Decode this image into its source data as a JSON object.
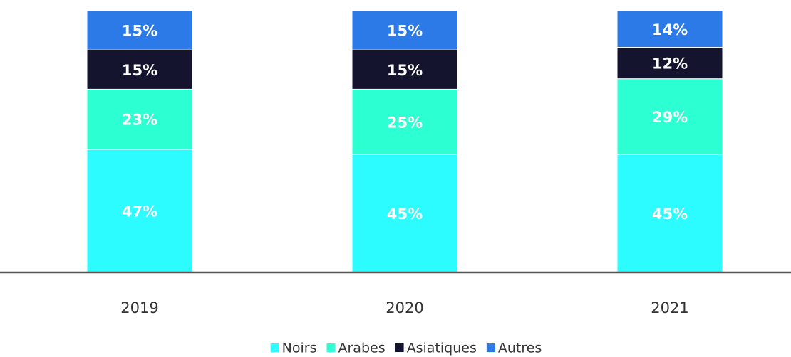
{
  "chart_data": {
    "type": "stacked_bar",
    "categories": [
      "2019",
      "2020",
      "2021"
    ],
    "series": [
      {
        "name": "Noirs",
        "color": "#2cfbff",
        "values": [
          47,
          45,
          45
        ],
        "value_labels": [
          "47%",
          "45%",
          "45%"
        ]
      },
      {
        "name": "Arabes",
        "color": "#2cffd2",
        "values": [
          23,
          25,
          29
        ],
        "value_labels": [
          "23%",
          "25%",
          "29%"
        ]
      },
      {
        "name": "Asiatiques",
        "color": "#15142f",
        "values": [
          15,
          15,
          12
        ],
        "value_labels": [
          "15%",
          "15%",
          "12%"
        ]
      },
      {
        "name": "Autres",
        "color": "#2b7ae8",
        "values": [
          15,
          15,
          14
        ],
        "value_labels": [
          "15%",
          "15%",
          "14%"
        ]
      }
    ],
    "ylim": [
      0,
      100
    ],
    "legend": "bottom"
  }
}
